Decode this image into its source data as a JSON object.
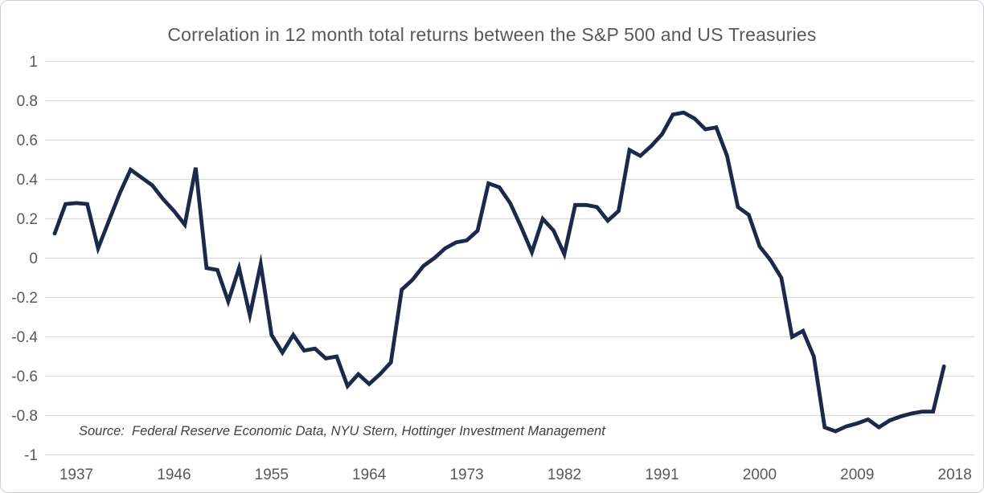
{
  "window": {
    "background_color": "#ffffff",
    "border_color": "#cbced3"
  },
  "chart_data": {
    "type": "line",
    "title": "Correlation in 12 month total returns between the S&P 500 and US Treasuries",
    "source_note": "Source:  Federal Reserve Economic Data, NYU Stern, Hottinger Investment Management",
    "series": [
      {
        "name": "Correlation of 12m total returns, S&P 500 vs US Treasuries",
        "color": "#1b2a4a",
        "x": [
          1935,
          1936,
          1937,
          1938,
          1939,
          1940,
          1941,
          1942,
          1943,
          1944,
          1945,
          1946,
          1947,
          1948,
          1949,
          1950,
          1951,
          1952,
          1953,
          1954,
          1955,
          1956,
          1957,
          1958,
          1959,
          1960,
          1961,
          1962,
          1963,
          1964,
          1965,
          1966,
          1967,
          1968,
          1969,
          1970,
          1971,
          1972,
          1973,
          1974,
          1975,
          1976,
          1977,
          1978,
          1979,
          1980,
          1981,
          1982,
          1983,
          1984,
          1985,
          1986,
          1987,
          1988,
          1989,
          1990,
          1991,
          1992,
          1993,
          1994,
          1995,
          1996,
          1997,
          1998,
          1999,
          2000,
          2001,
          2002,
          2003,
          2004,
          2005,
          2006,
          2007,
          2008,
          2009,
          2010,
          2011,
          2012,
          2013,
          2014,
          2015,
          2016,
          2017
        ],
        "values": [
          0.125,
          0.275,
          0.28,
          0.275,
          0.05,
          0.19,
          0.33,
          0.45,
          0.41,
          0.37,
          0.3,
          0.24,
          0.17,
          0.46,
          -0.05,
          -0.06,
          -0.22,
          -0.05,
          -0.29,
          -0.03,
          -0.39,
          -0.48,
          -0.39,
          -0.47,
          -0.46,
          -0.51,
          -0.5,
          -0.65,
          -0.59,
          -0.64,
          -0.59,
          -0.53,
          -0.16,
          -0.11,
          -0.04,
          0.0,
          0.05,
          0.08,
          0.09,
          0.14,
          0.38,
          0.36,
          0.28,
          0.16,
          0.03,
          0.2,
          0.14,
          0.02,
          0.27,
          0.27,
          0.26,
          0.19,
          0.24,
          0.55,
          0.52,
          0.57,
          0.63,
          0.73,
          0.74,
          0.71,
          0.655,
          0.665,
          0.52,
          0.26,
          0.22,
          0.06,
          -0.01,
          -0.1,
          -0.4,
          -0.37,
          -0.5,
          -0.86,
          -0.88,
          -0.855,
          -0.84,
          -0.82,
          -0.86,
          -0.825,
          -0.805,
          -0.79,
          -0.78,
          -0.78,
          -0.55
        ]
      }
    ],
    "x_ticks": [
      1937,
      1946,
      1955,
      1964,
      1973,
      1982,
      1991,
      2000,
      2009,
      2018
    ],
    "y_ticks": [
      1,
      0.8,
      0.6,
      0.4,
      0.2,
      0,
      -0.2,
      -0.4,
      -0.6,
      -0.8,
      -1
    ],
    "y_tick_labels": [
      "1",
      "0.8",
      "0.6",
      "0.4",
      "0.2",
      "0",
      "-0.2",
      "-0.4",
      "-0.6",
      "-0.8",
      "-1"
    ],
    "ylim": [
      -1,
      1
    ],
    "xlim": [
      1935,
      2019.8
    ],
    "grid": "horizontal",
    "legend": "none",
    "gridline_color": "#d9d9d9",
    "axis_label_color": "#595959",
    "line_width": 4.8
  }
}
